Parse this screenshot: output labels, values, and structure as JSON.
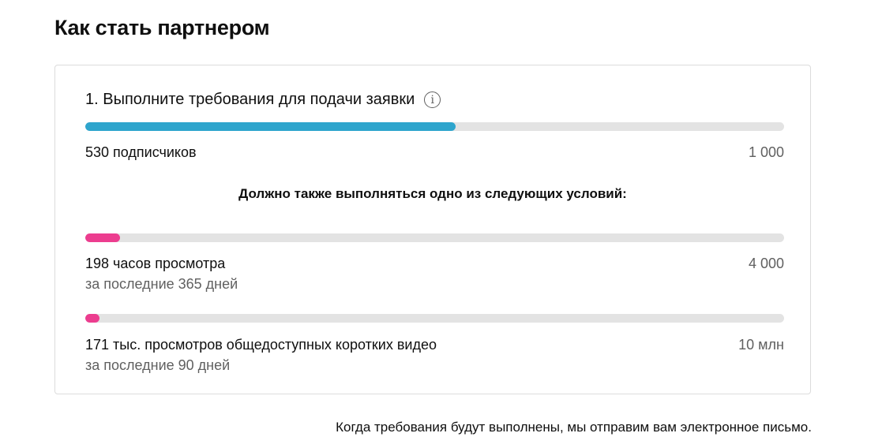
{
  "page_title": "Как стать партнером",
  "card": {
    "step_title": "1. Выполните требования для подачи заявки",
    "info_icon": "info-icon",
    "subscribers": {
      "label": "530 подписчиков",
      "target": "1 000",
      "progress": 0.53,
      "color": "#2ea5cd"
    },
    "condition_note": "Должно также выполняться одно из следующих условий:",
    "watch_hours": {
      "label": "198 часов просмотра",
      "period": "за последние 365 дней",
      "target": "4 000",
      "progress": 0.0495,
      "color": "#ec3d8f"
    },
    "shorts_views": {
      "label": "171 тыс. просмотров общедоступных коротких видео",
      "period": "за последние 90 дней",
      "target": "10 млн",
      "progress": 0.02,
      "color": "#ec3d8f"
    }
  },
  "footer_note": "Когда требования будут выполнены, мы отправим вам электронное письмо."
}
